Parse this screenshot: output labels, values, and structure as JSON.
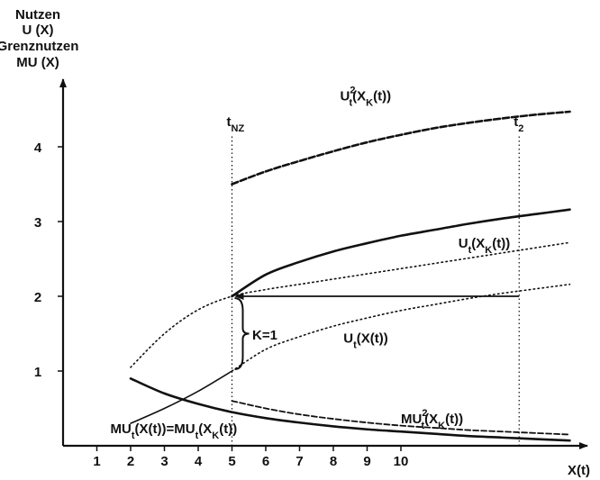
{
  "chart_data": {
    "type": "line",
    "title": "",
    "ylabel_lines": [
      "Nutzen",
      "U (X)",
      "Grenznutzen",
      "MU (X)"
    ],
    "xlabel": "X(t)",
    "x_ticks": [
      "1",
      "2",
      "3",
      "4",
      "5",
      "6",
      "7",
      "8",
      "9",
      "10"
    ],
    "y_ticks": [
      "1",
      "2",
      "3",
      "4"
    ],
    "xlim": [
      0,
      15.1
    ],
    "ylim": [
      0,
      4.8
    ],
    "grid": false,
    "legend": "none",
    "vlines": [
      {
        "x": 5,
        "label_main": "t",
        "label_sub": "NZ"
      },
      {
        "x": 13.5,
        "label_main": "t",
        "label_sub": "2"
      }
    ],
    "series": [
      {
        "style": "dotted",
        "x": [
          2,
          3,
          4,
          5,
          6,
          7,
          8,
          9,
          10,
          11,
          12,
          13,
          14,
          15
        ],
        "y": [
          1.05,
          1.5,
          1.82,
          2.0,
          2.09,
          2.16,
          2.23,
          2.3,
          2.37,
          2.44,
          2.51,
          2.58,
          2.65,
          2.72
        ]
      },
      {
        "style": "solid-thin",
        "x": [
          2,
          3,
          4,
          5
        ],
        "y": [
          0.3,
          0.5,
          0.73,
          1.0
        ]
      },
      {
        "style": "solid-bold",
        "x": [
          5,
          6,
          7,
          8,
          9,
          10,
          11,
          12,
          13,
          14,
          15
        ],
        "y": [
          2.0,
          2.29,
          2.46,
          2.6,
          2.71,
          2.81,
          2.89,
          2.97,
          3.04,
          3.1,
          3.16
        ]
      },
      {
        "style": "dotted",
        "x": [
          5,
          6,
          7,
          8,
          9,
          10,
          11,
          12,
          13,
          14,
          15
        ],
        "y": [
          1.0,
          1.29,
          1.46,
          1.6,
          1.71,
          1.81,
          1.89,
          1.97,
          2.04,
          2.1,
          2.16
        ]
      },
      {
        "style": "dashed-bold",
        "x": [
          5,
          6,
          7,
          8,
          9,
          10,
          11,
          12,
          13,
          14,
          15
        ],
        "y": [
          3.5,
          3.67,
          3.81,
          3.94,
          4.06,
          4.16,
          4.25,
          4.32,
          4.38,
          4.43,
          4.47
        ]
      },
      {
        "style": "solid-bold",
        "x": [
          2,
          3,
          4,
          5,
          6,
          7,
          8,
          9,
          10,
          11,
          12,
          13,
          14,
          15
        ],
        "y": [
          0.9,
          0.7,
          0.56,
          0.45,
          0.37,
          0.31,
          0.26,
          0.22,
          0.19,
          0.16,
          0.13,
          0.11,
          0.09,
          0.07
        ]
      },
      {
        "style": "dashed",
        "x": [
          5,
          6,
          7,
          8,
          9,
          10,
          11,
          12,
          13,
          14,
          15
        ],
        "y": [
          0.6,
          0.5,
          0.42,
          0.36,
          0.31,
          0.27,
          0.24,
          0.21,
          0.19,
          0.17,
          0.15
        ]
      }
    ],
    "arrow": {
      "from": [
        13.5,
        2.0
      ],
      "to": [
        5,
        2.0
      ]
    },
    "annotations": [
      {
        "id": "u2",
        "main": "U",
        "sup": "2",
        "sub": "t",
        "rest": "(X",
        "sub2": "K",
        "tail": "(t))",
        "x": 8.2,
        "y": 4.62
      },
      {
        "id": "uk",
        "main": "U",
        "sub": "t",
        "rest": "(X",
        "sub2": "K",
        "tail": "(t))",
        "x": 11.7,
        "y": 2.65
      },
      {
        "id": "ut",
        "main": "U",
        "sub": "t",
        "rest": "(X(t))",
        "x": 8.3,
        "y": 1.38
      },
      {
        "id": "k1",
        "text": "K=1",
        "x": 5.6,
        "y": 1.42
      },
      {
        "id": "mu2",
        "main": "MU",
        "sup": "2",
        "sub": "t",
        "rest": "(X",
        "sub2": "K",
        "tail": "(t))",
        "x": 10.0,
        "y": 0.3
      },
      {
        "id": "mueq",
        "main": "MU",
        "sub": "t",
        "rest": "(X(t))=MU",
        "sub3": "t",
        "rest2": "(X",
        "sub2": "K",
        "tail": "(t))",
        "x": 1.4,
        "y": 0.17
      }
    ]
  }
}
